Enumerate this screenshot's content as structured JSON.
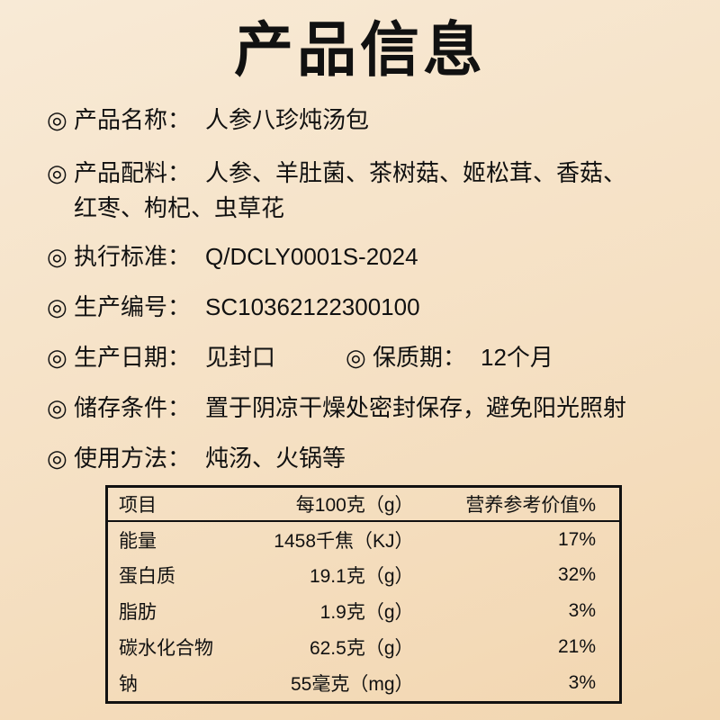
{
  "title": "产品信息",
  "mark": "◎",
  "info": [
    {
      "label": "产品名称：",
      "value": "人参八珍炖汤包"
    },
    {
      "label": "产品配料：",
      "value": "人参、羊肚菌、茶树菇、姬松茸、香菇、",
      "value2": "红枣、枸杞、虫草花"
    },
    {
      "label": "执行标准：",
      "value": "Q/DCLY0001S-2024"
    },
    {
      "label": "生产编号：",
      "value": "SC10362122300100"
    },
    {
      "label": "生产日期：",
      "value": "见封口",
      "label2": "保质期：",
      "value3": "12个月"
    },
    {
      "label": "储存条件：",
      "value": "置于阴凉干燥处密封保存，避免阳光照射"
    },
    {
      "label": "使用方法：",
      "value": "炖汤、火锅等"
    }
  ],
  "table": {
    "headers": [
      "项目",
      "每100克（g）",
      "营养参考价值%"
    ],
    "rows": [
      [
        "能量",
        "1458千焦（KJ）",
        "17%"
      ],
      [
        "蛋白质",
        "19.1克（g）",
        "32%"
      ],
      [
        "脂肪",
        "1.9克（g）",
        "3%"
      ],
      [
        "碳水化合物",
        "62.5克（g）",
        "21%"
      ],
      [
        "钠",
        "55毫克（mg）",
        "3%"
      ]
    ]
  }
}
